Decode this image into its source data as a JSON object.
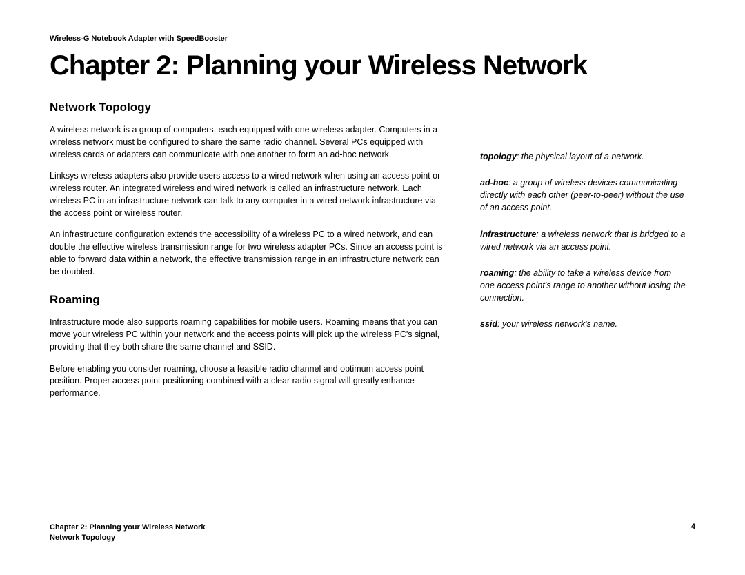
{
  "header": {
    "product": "Wireless-G Notebook Adapter with SpeedBooster"
  },
  "chapter": {
    "title": "Chapter 2: Planning your Wireless Network"
  },
  "sections": {
    "s1": {
      "heading": "Network Topology",
      "p1": "A wireless network is a group of computers, each equipped with one wireless adapter.  Computers in a wireless network must be configured to share the same radio channel. Several PCs equipped with wireless cards or adapters can communicate with one another to form an ad-hoc network.",
      "p2": "Linksys wireless adapters also provide users access to a wired network when using an access point or wireless router.  An integrated wireless and wired network is called an infrastructure network. Each wireless PC in an infrastructure network can talk to any computer in a wired network infrastructure via the access point or wireless router.",
      "p3": "An infrastructure configuration extends the accessibility of a wireless PC to a wired network, and can double the effective wireless transmission range for two wireless adapter PCs.  Since an access point is able to forward data within a network, the effective transmission range in an infrastructure network can be doubled."
    },
    "s2": {
      "heading": "Roaming",
      "p1": "Infrastructure mode also supports roaming capabilities for mobile users. Roaming means that you can move your wireless PC within your network and the access points will pick up the wireless PC's signal, providing that they both share the same channel and SSID.",
      "p2": "Before enabling you consider roaming, choose a feasible radio channel and optimum access point position. Proper access point positioning combined with a clear radio signal will greatly enhance performance."
    }
  },
  "glossary": {
    "t1": {
      "term": "topology",
      "def": ": the physical layout of a network."
    },
    "t2": {
      "term": "ad-hoc",
      "def": ": a group of wireless devices communicating directly with each other (peer-to-peer) without the use of an access point."
    },
    "t3": {
      "term": "infrastructure",
      "def": ": a wireless network that is bridged to a wired network via an access point."
    },
    "t4": {
      "term": "roaming",
      "def": ": the ability to take a wireless device from one access point's range to another without losing the connection."
    },
    "t5": {
      "term": "ssid",
      "def": ": your wireless network's name."
    }
  },
  "footer": {
    "line1": "Chapter 2: Planning your Wireless Network",
    "line2": "Network Topology",
    "page": "4"
  },
  "style": {
    "bg": "#ffffff",
    "text": "#000000",
    "title_fontsize": 40,
    "heading_fontsize": 17,
    "body_fontsize": 12.5,
    "small_fontsize": 11
  }
}
